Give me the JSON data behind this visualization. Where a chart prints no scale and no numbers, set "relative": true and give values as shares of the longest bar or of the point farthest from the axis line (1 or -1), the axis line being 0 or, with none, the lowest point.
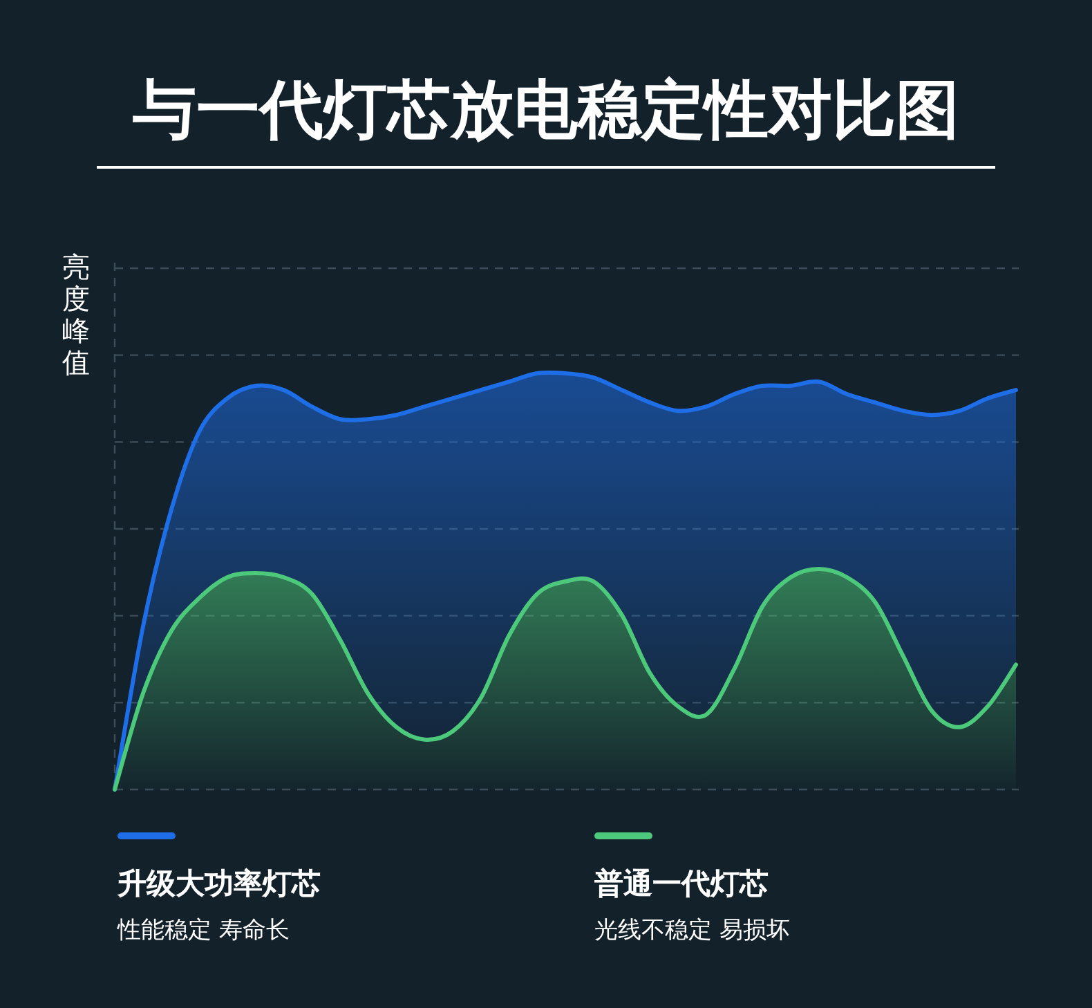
{
  "chart_data": {
    "type": "area",
    "title": "与一代灯芯放电稳定性对比图",
    "ylabel": "亮度峰值",
    "relative": true,
    "stacked": false,
    "grid": "y",
    "legend": "bottom",
    "categories": [
      null,
      null,
      null,
      null,
      null,
      null,
      null,
      null,
      null,
      null,
      null,
      null,
      null,
      null,
      null,
      null,
      null,
      null,
      null,
      null,
      null,
      null,
      null,
      null,
      null,
      null,
      null,
      null,
      null,
      null,
      null,
      null,
      null
    ],
    "series": [
      {
        "name": "普通一代灯芯",
        "color": "#4cc97a",
        "values": [
          0,
          0.23,
          0.38,
          0.46,
          0.51,
          0.52,
          0.51,
          0.47,
          0.36,
          0.23,
          0.15,
          0.12,
          0.14,
          0.22,
          0.37,
          0.47,
          0.5,
          0.5,
          0.42,
          0.28,
          0.2,
          0.18,
          0.29,
          0.44,
          0.51,
          0.53,
          0.51,
          0.45,
          0.32,
          0.19,
          0.15,
          0.2,
          0.3
        ]
      },
      {
        "name": "升级大功率灯芯",
        "color": "#1e6ee8",
        "values": [
          0,
          0.39,
          0.67,
          0.86,
          0.94,
          0.97,
          0.96,
          0.92,
          0.89,
          0.89,
          0.9,
          0.92,
          0.94,
          0.96,
          0.98,
          1,
          1,
          0.99,
          0.96,
          0.93,
          0.91,
          0.92,
          0.95,
          0.97,
          0.97,
          0.98,
          0.95,
          0.93,
          0.91,
          0.9,
          0.91,
          0.94,
          0.96
        ]
      }
    ],
    "annotations": [
      "性能稳定 寿命长",
      "光线不稳定 易损坏"
    ]
  }
}
